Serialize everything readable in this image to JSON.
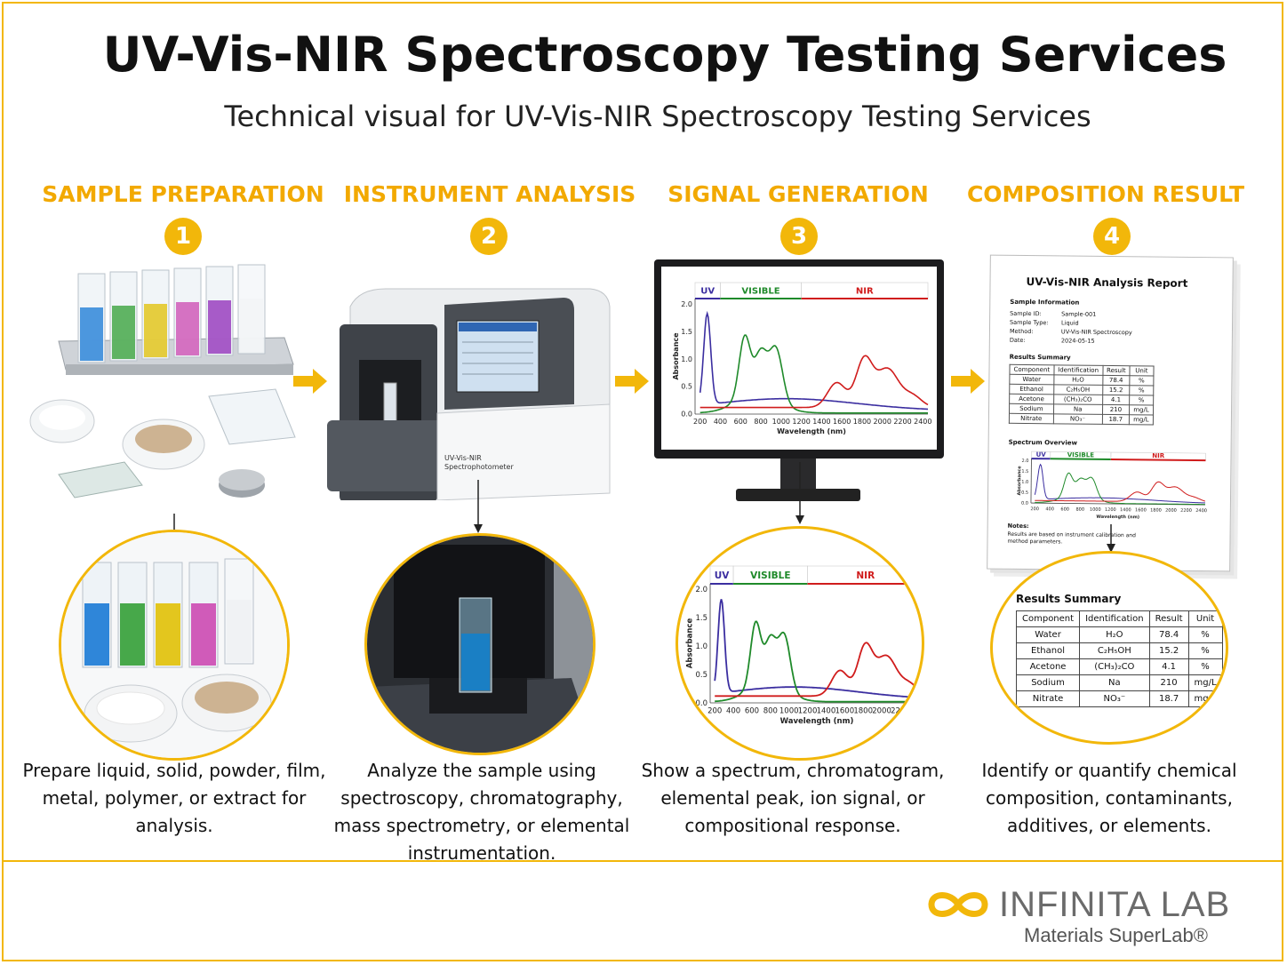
{
  "title": "UV-Vis-NIR Spectroscopy Testing Services",
  "subtitle": "Technical visual for UV-Vis-NIR Spectroscopy Testing Services",
  "steps": [
    {
      "title": "SAMPLE PREPARATION",
      "number": "1",
      "caption": "Prepare liquid, solid, powder, film, metal, polymer, or extract for analysis."
    },
    {
      "title": "INSTRUMENT ANALYSIS",
      "number": "2",
      "caption": "Analyze the sample using spectroscopy, chromatography, mass spectrometry, or elemental instrumentation."
    },
    {
      "title": "SIGNAL GENERATION",
      "number": "3",
      "caption": "Show a spectrum, chromatogram, elemental peak, ion signal, or compositional response."
    },
    {
      "title": "COMPOSITION RESULT",
      "number": "4",
      "caption": "Identify or quantify chemical composition, contaminants, additives, or elements."
    }
  ],
  "instrument_label": {
    "line1": "UV-Vis-NIR",
    "line2": "Spectrophotometer"
  },
  "spectrum": {
    "regions": [
      "UV",
      "VISIBLE",
      "NIR"
    ],
    "ylabel": "Absorbance",
    "xlabel": "Wavelength (nm)",
    "yticks": [
      "0.0",
      "0.5",
      "1.0",
      "1.5",
      "2.0"
    ],
    "xticks": [
      "200",
      "400",
      "600",
      "800",
      "1000",
      "1200",
      "1400",
      "1600",
      "1800",
      "2000",
      "2200",
      "2400"
    ]
  },
  "report": {
    "title": "UV-Vis-NIR Analysis Report",
    "sample_info_heading": "Sample Information",
    "sample_info": [
      {
        "key": "Sample ID:",
        "value": "Sample-001"
      },
      {
        "key": "Sample Type:",
        "value": "Liquid"
      },
      {
        "key": "Method:",
        "value": "UV-Vis-NIR Spectroscopy"
      },
      {
        "key": "Date:",
        "value": "2024-05-15"
      }
    ],
    "results_heading": "Results Summary",
    "columns": [
      "Component",
      "Identification",
      "Result",
      "Unit"
    ],
    "rows": [
      [
        "Water",
        "H₂O",
        "78.4",
        "%"
      ],
      [
        "Ethanol",
        "C₂H₅OH",
        "15.2",
        "%"
      ],
      [
        "Acetone",
        "(CH₃)₂CO",
        "4.1",
        "%"
      ],
      [
        "Sodium",
        "Na",
        "210",
        "mg/L"
      ],
      [
        "Nitrate",
        "NO₃⁻",
        "18.7",
        "mg/L"
      ]
    ],
    "spectrum_heading": "Spectrum Overview",
    "notes_heading": "Notes:",
    "notes": "Results are based on instrument calibration and method parameters."
  },
  "brand": {
    "name": "INFINITA LAB",
    "tagline": "Materials SuperLab®"
  },
  "colors": {
    "accent": "#f2b70a",
    "uv": "#3b2ea0",
    "visible": "#1f8a2a",
    "nir": "#d01c1c"
  }
}
